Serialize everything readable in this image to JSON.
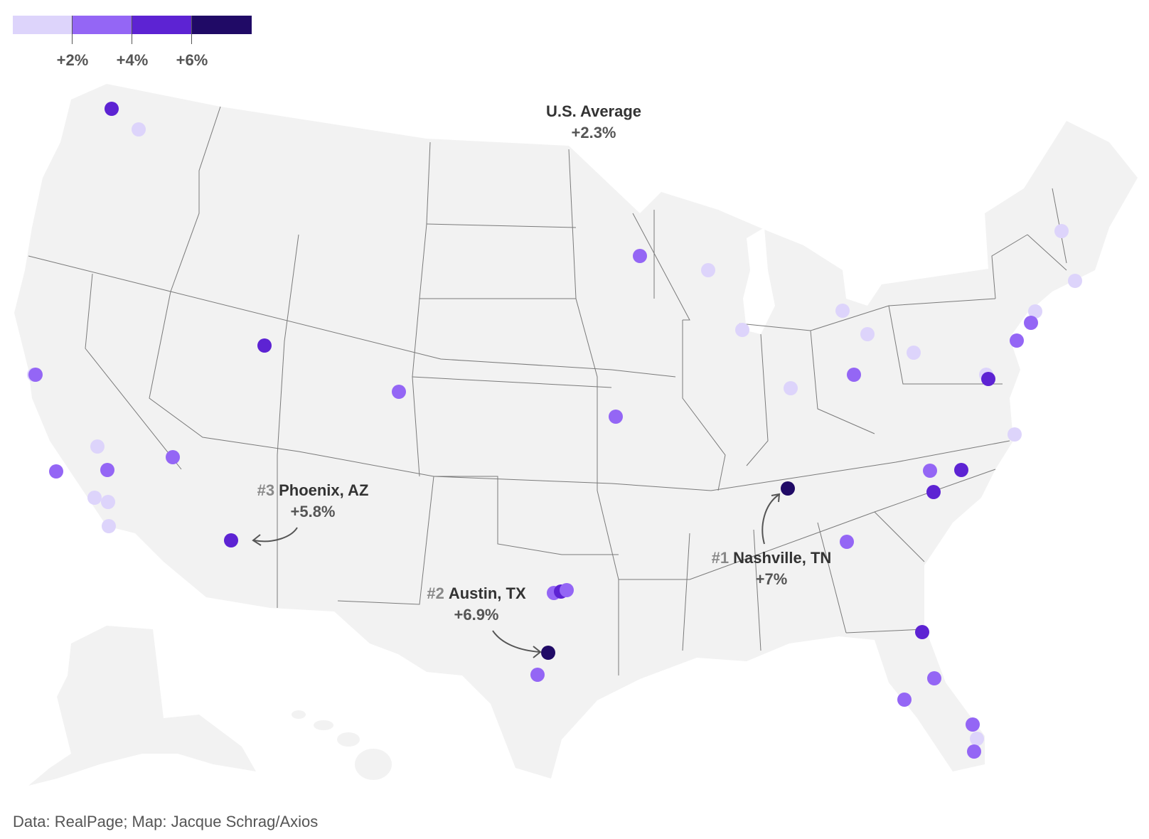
{
  "legend": {
    "tick_labels": [
      "+2%",
      "+4%",
      "+6%"
    ],
    "colors": [
      "#ddd4fb",
      "#9466f5",
      "#5d23d3",
      "#200a66"
    ]
  },
  "us_average": {
    "label": "U.S. Average",
    "value": "+2.3%"
  },
  "highlights": [
    {
      "rank": "#1",
      "city": "Nashville, TN",
      "value": "+7%"
    },
    {
      "rank": "#2",
      "city": "Austin, TX",
      "value": "+6.9%"
    },
    {
      "rank": "#3",
      "city": "Phoenix, AZ",
      "value": "+5.8%"
    }
  ],
  "source": "Data: RealPage; Map: Jacque Schrag/Axios",
  "colors": {
    "land": "#f2f2f2",
    "border": "#7a7a7a",
    "text": "#333333",
    "muted": "#555555"
  }
}
